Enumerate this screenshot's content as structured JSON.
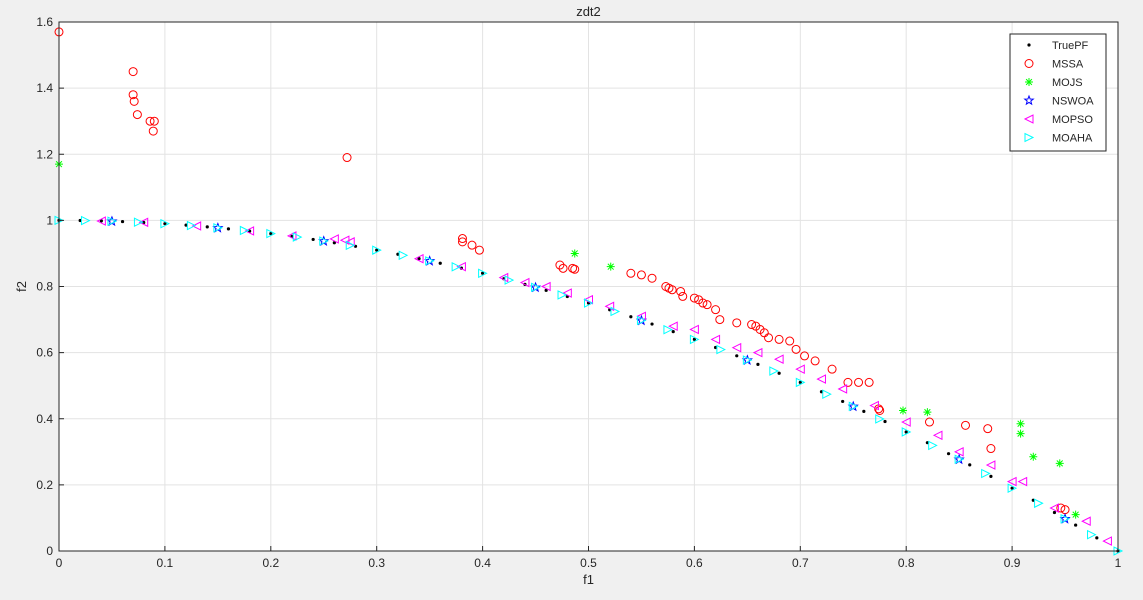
{
  "chart_data": {
    "type": "scatter",
    "title": "zdt2",
    "xlabel": "f1",
    "ylabel": "f2",
    "xlim": [
      0,
      1
    ],
    "ylim": [
      0,
      1.6
    ],
    "xticks": [
      "0",
      "0.1",
      "0.2",
      "0.3",
      "0.4",
      "0.5",
      "0.6",
      "0.7",
      "0.8",
      "0.9",
      "1"
    ],
    "yticks": [
      "0",
      "0.2",
      "0.4",
      "0.6",
      "0.8",
      "1",
      "1.2",
      "1.4",
      "1.6"
    ],
    "grid": true,
    "legend_position": "top-right",
    "series": [
      {
        "name": "TruePF",
        "marker": "dot",
        "color": "#000000",
        "curve": "f2 = 1 - f1^2",
        "points": [
          [
            0,
            1
          ],
          [
            0.02,
            0.9996
          ],
          [
            0.04,
            0.9984
          ],
          [
            0.06,
            0.9964
          ],
          [
            0.08,
            0.9936
          ],
          [
            0.1,
            0.99
          ],
          [
            0.12,
            0.9856
          ],
          [
            0.14,
            0.9804
          ],
          [
            0.16,
            0.9744
          ],
          [
            0.18,
            0.9676
          ],
          [
            0.2,
            0.96
          ],
          [
            0.22,
            0.9516
          ],
          [
            0.24,
            0.9424
          ],
          [
            0.26,
            0.9324
          ],
          [
            0.28,
            0.9216
          ],
          [
            0.3,
            0.91
          ],
          [
            0.32,
            0.8976
          ],
          [
            0.34,
            0.8844
          ],
          [
            0.36,
            0.8704
          ],
          [
            0.38,
            0.8556
          ],
          [
            0.4,
            0.84
          ],
          [
            0.42,
            0.8236
          ],
          [
            0.44,
            0.8064
          ],
          [
            0.46,
            0.7884
          ],
          [
            0.48,
            0.7696
          ],
          [
            0.5,
            0.75
          ],
          [
            0.52,
            0.7296
          ],
          [
            0.54,
            0.7084
          ],
          [
            0.56,
            0.6864
          ],
          [
            0.58,
            0.6636
          ],
          [
            0.6,
            0.64
          ],
          [
            0.62,
            0.6156
          ],
          [
            0.64,
            0.5904
          ],
          [
            0.66,
            0.5644
          ],
          [
            0.68,
            0.5376
          ],
          [
            0.7,
            0.51
          ],
          [
            0.72,
            0.4816
          ],
          [
            0.74,
            0.4524
          ],
          [
            0.76,
            0.4224
          ],
          [
            0.78,
            0.3916
          ],
          [
            0.8,
            0.36
          ],
          [
            0.82,
            0.3276
          ],
          [
            0.84,
            0.2944
          ],
          [
            0.86,
            0.2604
          ],
          [
            0.88,
            0.2256
          ],
          [
            0.9,
            0.19
          ],
          [
            0.92,
            0.1536
          ],
          [
            0.94,
            0.1164
          ],
          [
            0.96,
            0.0784
          ],
          [
            0.98,
            0.0396
          ],
          [
            1,
            0
          ]
        ]
      },
      {
        "name": "MSSA",
        "marker": "circle",
        "color": "#ff0000",
        "points": [
          [
            0,
            1.57
          ],
          [
            0.07,
            1.45
          ],
          [
            0.07,
            1.38
          ],
          [
            0.071,
            1.36
          ],
          [
            0.074,
            1.32
          ],
          [
            0.086,
            1.3
          ],
          [
            0.09,
            1.3
          ],
          [
            0.089,
            1.27
          ],
          [
            0.272,
            1.19
          ],
          [
            0.381,
            0.945
          ],
          [
            0.381,
            0.935
          ],
          [
            0.39,
            0.925
          ],
          [
            0.397,
            0.91
          ],
          [
            0.473,
            0.865
          ],
          [
            0.476,
            0.855
          ],
          [
            0.485,
            0.855
          ],
          [
            0.487,
            0.852
          ],
          [
            0.54,
            0.84
          ],
          [
            0.55,
            0.835
          ],
          [
            0.56,
            0.825
          ],
          [
            0.573,
            0.8
          ],
          [
            0.576,
            0.795
          ],
          [
            0.579,
            0.79
          ],
          [
            0.587,
            0.785
          ],
          [
            0.589,
            0.77
          ],
          [
            0.6,
            0.765
          ],
          [
            0.604,
            0.76
          ],
          [
            0.608,
            0.75
          ],
          [
            0.612,
            0.745
          ],
          [
            0.62,
            0.73
          ],
          [
            0.624,
            0.7
          ],
          [
            0.64,
            0.69
          ],
          [
            0.654,
            0.685
          ],
          [
            0.658,
            0.68
          ],
          [
            0.662,
            0.67
          ],
          [
            0.666,
            0.66
          ],
          [
            0.67,
            0.645
          ],
          [
            0.68,
            0.64
          ],
          [
            0.69,
            0.635
          ],
          [
            0.696,
            0.61
          ],
          [
            0.704,
            0.59
          ],
          [
            0.714,
            0.575
          ],
          [
            0.73,
            0.55
          ],
          [
            0.745,
            0.51
          ],
          [
            0.755,
            0.51
          ],
          [
            0.765,
            0.51
          ],
          [
            0.774,
            0.43
          ],
          [
            0.775,
            0.425
          ],
          [
            0.822,
            0.39
          ],
          [
            0.856,
            0.38
          ],
          [
            0.877,
            0.37
          ],
          [
            0.88,
            0.31
          ],
          [
            0.946,
            0.13
          ],
          [
            0.95,
            0.125
          ]
        ]
      },
      {
        "name": "MOJS",
        "marker": "asterisk",
        "color": "#00ff00",
        "points": [
          [
            0,
            1.17
          ],
          [
            0.487,
            0.9
          ],
          [
            0.521,
            0.86
          ],
          [
            0.797,
            0.425
          ],
          [
            0.82,
            0.42
          ],
          [
            0.908,
            0.385
          ],
          [
            0.908,
            0.355
          ],
          [
            0.92,
            0.285
          ],
          [
            0.945,
            0.265
          ],
          [
            0.96,
            0.11
          ]
        ]
      },
      {
        "name": "NSWOA",
        "marker": "star",
        "color": "#0000ff",
        "points": [
          [
            0.05,
            0.997
          ],
          [
            0.15,
            0.977
          ],
          [
            0.25,
            0.937
          ],
          [
            0.35,
            0.877
          ],
          [
            0.45,
            0.797
          ],
          [
            0.55,
            0.697
          ],
          [
            0.65,
            0.577
          ],
          [
            0.75,
            0.437
          ],
          [
            0.85,
            0.277
          ],
          [
            0.95,
            0.097
          ]
        ]
      },
      {
        "name": "MOPSO",
        "marker": "triangle-left",
        "color": "#ff00ff",
        "points": [
          [
            0.04,
            0.998
          ],
          [
            0.08,
            0.994
          ],
          [
            0.13,
            0.983
          ],
          [
            0.18,
            0.968
          ],
          [
            0.22,
            0.953
          ],
          [
            0.26,
            0.944
          ],
          [
            0.27,
            0.94
          ],
          [
            0.275,
            0.935
          ],
          [
            0.34,
            0.884
          ],
          [
            0.38,
            0.86
          ],
          [
            0.42,
            0.827
          ],
          [
            0.44,
            0.812
          ],
          [
            0.46,
            0.8
          ],
          [
            0.48,
            0.78
          ],
          [
            0.5,
            0.76
          ],
          [
            0.52,
            0.74
          ],
          [
            0.55,
            0.71
          ],
          [
            0.58,
            0.68
          ],
          [
            0.6,
            0.67
          ],
          [
            0.62,
            0.64
          ],
          [
            0.64,
            0.615
          ],
          [
            0.66,
            0.6
          ],
          [
            0.68,
            0.58
          ],
          [
            0.7,
            0.55
          ],
          [
            0.72,
            0.52
          ],
          [
            0.74,
            0.49
          ],
          [
            0.77,
            0.44
          ],
          [
            0.8,
            0.39
          ],
          [
            0.83,
            0.35
          ],
          [
            0.85,
            0.3
          ],
          [
            0.88,
            0.26
          ],
          [
            0.9,
            0.21
          ],
          [
            0.91,
            0.21
          ],
          [
            0.94,
            0.13
          ],
          [
            0.97,
            0.09
          ],
          [
            0.99,
            0.03
          ]
        ]
      },
      {
        "name": "MOAHA",
        "marker": "triangle-right",
        "color": "#00ffff",
        "points": [
          [
            0,
            1
          ],
          [
            0.025,
            0.9994
          ],
          [
            0.05,
            0.9975
          ],
          [
            0.075,
            0.9944
          ],
          [
            0.1,
            0.99
          ],
          [
            0.125,
            0.9844
          ],
          [
            0.15,
            0.9775
          ],
          [
            0.175,
            0.9694
          ],
          [
            0.2,
            0.96
          ],
          [
            0.225,
            0.9494
          ],
          [
            0.25,
            0.9375
          ],
          [
            0.275,
            0.9244
          ],
          [
            0.3,
            0.91
          ],
          [
            0.325,
            0.8944
          ],
          [
            0.35,
            0.8775
          ],
          [
            0.375,
            0.8594
          ],
          [
            0.4,
            0.84
          ],
          [
            0.425,
            0.8194
          ],
          [
            0.45,
            0.7975
          ],
          [
            0.475,
            0.7744
          ],
          [
            0.5,
            0.75
          ],
          [
            0.525,
            0.7244
          ],
          [
            0.55,
            0.6975
          ],
          [
            0.575,
            0.6694
          ],
          [
            0.6,
            0.64
          ],
          [
            0.625,
            0.6094
          ],
          [
            0.65,
            0.5775
          ],
          [
            0.675,
            0.5444
          ],
          [
            0.7,
            0.51
          ],
          [
            0.725,
            0.4744
          ],
          [
            0.75,
            0.4375
          ],
          [
            0.775,
            0.3994
          ],
          [
            0.8,
            0.36
          ],
          [
            0.825,
            0.3194
          ],
          [
            0.85,
            0.2775
          ],
          [
            0.875,
            0.2344
          ],
          [
            0.9,
            0.19
          ],
          [
            0.925,
            0.1444
          ],
          [
            0.95,
            0.0975
          ],
          [
            0.975,
            0.0494
          ],
          [
            1,
            0
          ]
        ]
      }
    ]
  }
}
